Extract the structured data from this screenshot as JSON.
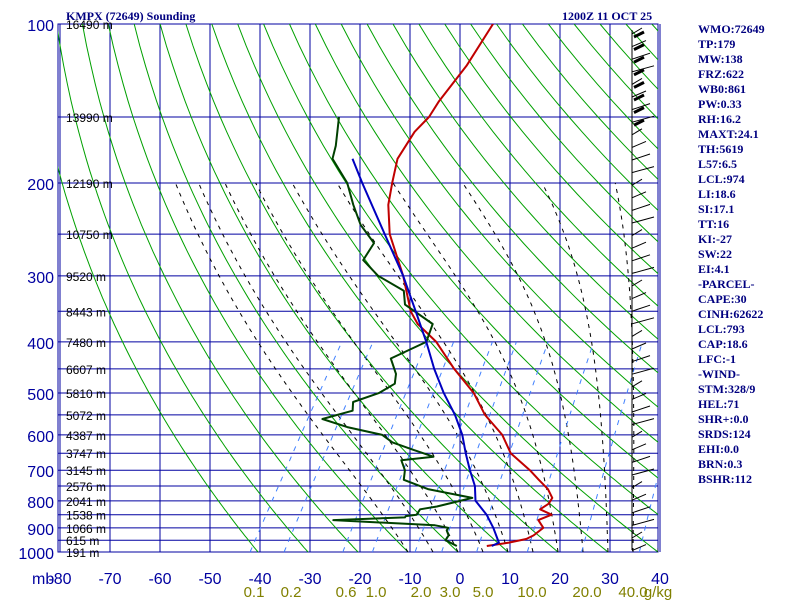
{
  "header": {
    "station": "KMPX (72649) Sounding",
    "time": "1200Z 11 OCT 25"
  },
  "indices": [
    "WMO:72649",
    "TP:179",
    "MW:138",
    "FRZ:622",
    "WB0:861",
    "PW:0.33",
    "RH:16.2",
    "MAXT:24.1",
    "TH:5619",
    "L57:6.5",
    "LCL:974",
    "LI:18.6",
    "SI:17.1",
    "TT:16",
    "KI:-27",
    "SW:22",
    "EI:4.1",
    "-PARCEL-",
    "CAPE:30",
    "CINH:62622",
    "LCL:793",
    "CAP:18.6",
    "LFC:-1",
    "-WIND-",
    "STM:328/9",
    "HEL:71",
    "SHR+:0.0",
    "SRDS:124",
    "EHI:0.0",
    "BRN:0.3",
    "BSHR:112"
  ],
  "colors": {
    "grid": "#0000a0",
    "dry_adiabat": "#00a000",
    "moist_adiabat": "#000000",
    "mixing_ratio": "#4080ff",
    "temperature": "#c00000",
    "dewpoint": "#004000",
    "parcel": "#0000c0",
    "text": "#000080"
  },
  "chart_data": {
    "type": "line",
    "title": "KMPX (72649) Sounding",
    "x_axis": {
      "label": "",
      "ticks": [
        -80,
        -70,
        -60,
        -50,
        -40,
        -30,
        -20,
        -10,
        0,
        10,
        20,
        30,
        40
      ],
      "tick_labels": [
        "-80",
        "-70",
        "-60",
        "-50",
        "-40",
        "-30",
        "-20",
        "-10",
        "0",
        "10",
        "20",
        "30",
        "40"
      ]
    },
    "y_axis": {
      "label": "mb",
      "scale": "log",
      "ylim": [
        1000,
        100
      ],
      "ticks": [
        100,
        200,
        300,
        400,
        500,
        600,
        700,
        800,
        900,
        1000
      ]
    },
    "height_labels": [
      {
        "p": 100,
        "label": "16490 m"
      },
      {
        "p": 150,
        "label": "13990 m"
      },
      {
        "p": 200,
        "label": "12190 m"
      },
      {
        "p": 250,
        "label": "10750 m"
      },
      {
        "p": 300,
        "label": "9520 m"
      },
      {
        "p": 350,
        "label": "8443 m"
      },
      {
        "p": 400,
        "label": "7480 m"
      },
      {
        "p": 450,
        "label": "6607 m"
      },
      {
        "p": 500,
        "label": "5810 m"
      },
      {
        "p": 550,
        "label": "5072 m"
      },
      {
        "p": 600,
        "label": "4387 m"
      },
      {
        "p": 650,
        "label": "3747 m"
      },
      {
        "p": 700,
        "label": "3145 m"
      },
      {
        "p": 750,
        "label": "2576 m"
      },
      {
        "p": 800,
        "label": "2041 m"
      },
      {
        "p": 850,
        "label": "1538 m"
      },
      {
        "p": 900,
        "label": "1066 m"
      },
      {
        "p": 950,
        "label": "615 m"
      },
      {
        "p": 1000,
        "label": "191 m"
      }
    ],
    "mixing_ratio_labels": [
      "0.1",
      "0.2",
      "0.6",
      "1.0",
      "2.0",
      "3.0",
      "5.0",
      "10.0",
      "20.0",
      "40.0",
      "g/kg"
    ],
    "series": [
      {
        "key": "temperature",
        "points": [
          [
            974,
            5
          ],
          [
            960,
            9
          ],
          [
            945,
            12
          ],
          [
            930,
            13
          ],
          [
            900,
            14
          ],
          [
            870,
            12
          ],
          [
            850,
            14
          ],
          [
            830,
            11
          ],
          [
            810,
            12
          ],
          [
            790,
            12
          ],
          [
            760,
            10
          ],
          [
            730,
            7
          ],
          [
            700,
            4
          ],
          [
            650,
            -2
          ],
          [
            600,
            -6
          ],
          [
            550,
            -12
          ],
          [
            500,
            -17
          ],
          [
            450,
            -24
          ],
          [
            400,
            -31
          ],
          [
            370,
            -37
          ],
          [
            350,
            -40
          ],
          [
            300,
            -46
          ],
          [
            250,
            -54
          ],
          [
            220,
            -58
          ],
          [
            200,
            -60
          ],
          [
            180,
            -62
          ],
          [
            160,
            -62
          ],
          [
            150,
            -61
          ],
          [
            140,
            -61
          ],
          [
            120,
            -60
          ],
          [
            100,
            -60
          ]
        ]
      },
      {
        "key": "dewpoint",
        "points": [
          [
            974,
            -1
          ],
          [
            950,
            -4
          ],
          [
            930,
            -4
          ],
          [
            910,
            -5
          ],
          [
            900,
            -5
          ],
          [
            890,
            -8
          ],
          [
            870,
            -29
          ],
          [
            860,
            -15
          ],
          [
            855,
            -15
          ],
          [
            850,
            -13
          ],
          [
            830,
            -13
          ],
          [
            820,
            -10
          ],
          [
            790,
            -4
          ],
          [
            760,
            -14
          ],
          [
            730,
            -20
          ],
          [
            700,
            -21
          ],
          [
            670,
            -23
          ],
          [
            660,
            -17
          ],
          [
            640,
            -22
          ],
          [
            620,
            -27
          ],
          [
            600,
            -30
          ],
          [
            580,
            -38
          ],
          [
            560,
            -44
          ],
          [
            540,
            -39
          ],
          [
            520,
            -40
          ],
          [
            500,
            -36
          ],
          [
            480,
            -34
          ],
          [
            460,
            -35
          ],
          [
            430,
            -38
          ],
          [
            400,
            -33
          ],
          [
            370,
            -34
          ],
          [
            340,
            -42
          ],
          [
            320,
            -44
          ],
          [
            300,
            -51
          ],
          [
            280,
            -56
          ],
          [
            260,
            -56
          ],
          [
            240,
            -61
          ],
          [
            220,
            -65
          ],
          [
            200,
            -69
          ],
          [
            180,
            -75
          ],
          [
            170,
            -76
          ],
          [
            150,
            -79
          ]
        ]
      },
      {
        "key": "parcel",
        "points": [
          [
            974,
            6
          ],
          [
            960,
            7
          ],
          [
            900,
            4
          ],
          [
            850,
            1
          ],
          [
            800,
            -3
          ],
          [
            750,
            -5
          ],
          [
            700,
            -8
          ],
          [
            650,
            -11
          ],
          [
            600,
            -14
          ],
          [
            550,
            -18
          ],
          [
            500,
            -23
          ],
          [
            450,
            -28
          ],
          [
            400,
            -33
          ],
          [
            350,
            -39
          ],
          [
            300,
            -46
          ],
          [
            250,
            -55
          ],
          [
            200,
            -66
          ],
          [
            180,
            -71
          ]
        ]
      }
    ]
  }
}
